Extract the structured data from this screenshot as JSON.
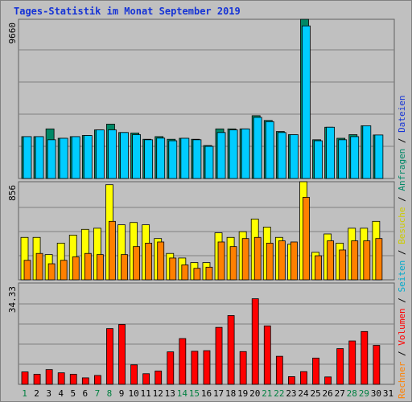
{
  "title": "Tages-Statistik im Monat September 2019",
  "colors": {
    "background": "#c0c0c0",
    "grid": "#808080",
    "dateien": "#00ccff",
    "anfragen": "#008866",
    "seiten": "#00ccff",
    "besuche": "#ffff00",
    "rechner": "#ff8000",
    "volumen": "#ff0000",
    "weekday_label": "#000000",
    "weekend_label": "#008040",
    "title": "#1533d6"
  },
  "chart_data": [
    {
      "type": "bar",
      "name": "hits-files",
      "ylabel_tick": "9660",
      "ylim": [
        0,
        9660
      ],
      "categories": [
        "1",
        "2",
        "3",
        "4",
        "5",
        "6",
        "7",
        "8",
        "9",
        "10",
        "11",
        "12",
        "13",
        "14",
        "15",
        "16",
        "17",
        "18",
        "19",
        "20",
        "21",
        "22",
        "23",
        "24",
        "25",
        "26",
        "27",
        "28",
        "29",
        "30",
        "31"
      ],
      "weekend": [
        "1",
        "7",
        "8",
        "14",
        "15",
        "21",
        "22",
        "28",
        "29"
      ],
      "series": [
        {
          "name": "Anfragen",
          "values": [
            2540,
            2540,
            3010,
            2440,
            2540,
            2610,
            2950,
            3300,
            2790,
            2760,
            2380,
            2540,
            2380,
            2440,
            2380,
            2000,
            3010,
            3010,
            3010,
            3810,
            3520,
            2850,
            2660,
            9660,
            2350,
            3110,
            2440,
            2660,
            3200,
            2640,
            null
          ]
        },
        {
          "name": "Dateien",
          "values": [
            2540,
            2540,
            2350,
            2440,
            2540,
            2610,
            2950,
            2950,
            2790,
            2660,
            2350,
            2450,
            2290,
            2440,
            2350,
            1950,
            2790,
            2950,
            3010,
            3710,
            3450,
            2790,
            2660,
            9260,
            2290,
            3110,
            2350,
            2540,
            3200,
            2640,
            null
          ]
        }
      ]
    },
    {
      "type": "bar",
      "name": "pages-visits-hosts",
      "ylabel_tick": "856",
      "ylim": [
        0,
        856
      ],
      "categories": [
        "1",
        "2",
        "3",
        "4",
        "5",
        "6",
        "7",
        "8",
        "9",
        "10",
        "11",
        "12",
        "13",
        "14",
        "15",
        "16",
        "17",
        "18",
        "19",
        "20",
        "21",
        "22",
        "23",
        "24",
        "25",
        "26",
        "27",
        "28",
        "29",
        "30",
        "31"
      ],
      "series": [
        {
          "name": "Seiten",
          "values": [
            0,
            0,
            0,
            0,
            0,
            0,
            0,
            0,
            0,
            0,
            0,
            0,
            0,
            0,
            0,
            0,
            0,
            0,
            0,
            0,
            0,
            0,
            0,
            0,
            0,
            0,
            0,
            0,
            0,
            0,
            null
          ]
        },
        {
          "name": "Besuche",
          "values": [
            370,
            370,
            220,
            320,
            390,
            440,
            450,
            830,
            480,
            500,
            480,
            360,
            230,
            190,
            150,
            150,
            410,
            370,
            420,
            530,
            460,
            370,
            310,
            856,
            240,
            400,
            320,
            450,
            450,
            510,
            null
          ]
        },
        {
          "name": "Rechner",
          "values": [
            170,
            230,
            140,
            170,
            200,
            230,
            220,
            510,
            220,
            290,
            320,
            330,
            190,
            130,
            100,
            110,
            330,
            290,
            360,
            370,
            320,
            340,
            330,
            720,
            210,
            340,
            260,
            340,
            340,
            360,
            null
          ]
        }
      ]
    },
    {
      "type": "bar",
      "name": "volume",
      "ylabel_tick": "34.33",
      "ylim": [
        0,
        34.33
      ],
      "categories": [
        "1",
        "2",
        "3",
        "4",
        "5",
        "6",
        "7",
        "8",
        "9",
        "10",
        "11",
        "12",
        "13",
        "14",
        "15",
        "16",
        "17",
        "18",
        "19",
        "20",
        "21",
        "22",
        "23",
        "24",
        "25",
        "26",
        "27",
        "28",
        "29",
        "30",
        "31"
      ],
      "series": [
        {
          "name": "Volumen",
          "values": [
            4.2,
            3.4,
            5.0,
            3.9,
            3.4,
            2.2,
            3.0,
            18.9,
            20.3,
            6.6,
            3.6,
            4.5,
            11.0,
            15.5,
            11.2,
            11.4,
            19.3,
            23.3,
            11.1,
            29.0,
            19.8,
            9.5,
            2.6,
            4.3,
            8.9,
            2.5,
            12.1,
            14.7,
            17.9,
            13.2,
            null
          ]
        }
      ]
    }
  ],
  "legend": {
    "right_top": [
      {
        "text": "Anfragen",
        "color": "#008866"
      },
      {
        "text": "Dateien",
        "color": "#1533d6"
      }
    ],
    "right_mid": [
      {
        "text": "Seiten",
        "color": "#00aacc"
      },
      {
        "text": "Besuche",
        "color": "#cccc00"
      }
    ],
    "right_bottom": [
      {
        "text": "Rechner",
        "color": "#ff8000"
      },
      {
        "text": "Volumen",
        "color": "#ff0000"
      }
    ],
    "separator": " / "
  }
}
